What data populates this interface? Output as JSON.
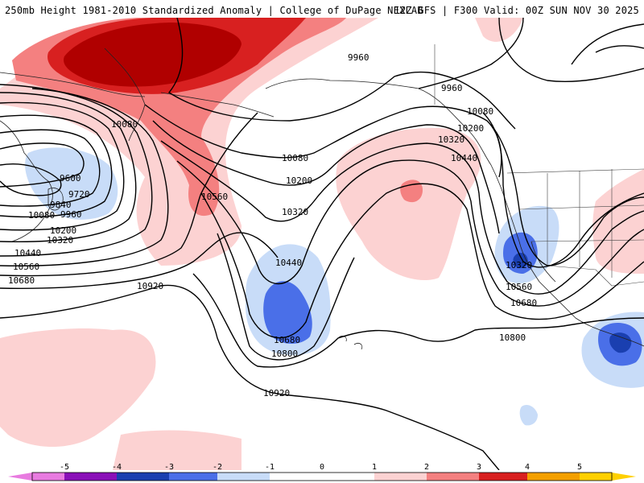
{
  "header": {
    "left_title": "250mb Height 1981-2010 Standardized Anomaly | College of DuPage NEXLAB",
    "right_title": "12Z GFS | F300 Valid: 00Z SUN NOV 30 2025"
  },
  "contour_labels": [
    {
      "id": "c9960-a",
      "text": "9960"
    },
    {
      "id": "c9960-b",
      "text": "9960"
    },
    {
      "id": "c9960-c",
      "text": "9960"
    },
    {
      "id": "c10080-a",
      "text": "10080"
    },
    {
      "id": "c10080-b",
      "text": "10080"
    },
    {
      "id": "c10080-c",
      "text": "10080"
    },
    {
      "id": "c10080-d",
      "text": "10080"
    },
    {
      "id": "c10200-a",
      "text": "10200"
    },
    {
      "id": "c10200-b",
      "text": "10200"
    },
    {
      "id": "c10200-c",
      "text": "10200"
    },
    {
      "id": "c10320-a",
      "text": "10320"
    },
    {
      "id": "c10320-b",
      "text": "10320"
    },
    {
      "id": "c10320-c",
      "text": "10320"
    },
    {
      "id": "c10320-d",
      "text": "10320"
    },
    {
      "id": "c10440-a",
      "text": "10440"
    },
    {
      "id": "c10440-b",
      "text": "10440"
    },
    {
      "id": "c10440-c",
      "text": "10440"
    },
    {
      "id": "c10560-a",
      "text": "10560"
    },
    {
      "id": "c10560-b",
      "text": "10560"
    },
    {
      "id": "c10560-c",
      "text": "10560"
    },
    {
      "id": "c10680-a",
      "text": "10680"
    },
    {
      "id": "c10680-b",
      "text": "10680"
    },
    {
      "id": "c10680-c",
      "text": "10680"
    },
    {
      "id": "c10800-a",
      "text": "10800"
    },
    {
      "id": "c10800-b",
      "text": "10800"
    },
    {
      "id": "c10920-a",
      "text": "10920"
    },
    {
      "id": "c10920-b",
      "text": "10920"
    },
    {
      "id": "c9600",
      "text": "9600"
    },
    {
      "id": "c9720",
      "text": "9720"
    },
    {
      "id": "c9840",
      "text": "9840"
    }
  ],
  "colorbar": {
    "ticks": [
      "-5",
      "-4",
      "-3",
      "-2",
      "-1",
      "0",
      "1",
      "2",
      "3",
      "4",
      "5"
    ],
    "colors": {
      "m5": "#e87be0",
      "m4": "#8a10b8",
      "m3": "#1a3fb0",
      "m2": "#4a6fe8",
      "m1": "#c8dcf8",
      "z": "#ffffff",
      "p1": "#fcd2d2",
      "p2": "#f48080",
      "p3": "#d82020",
      "p4": "#b00000",
      "p5": "#f4a000",
      "p6": "#ffd000"
    }
  }
}
